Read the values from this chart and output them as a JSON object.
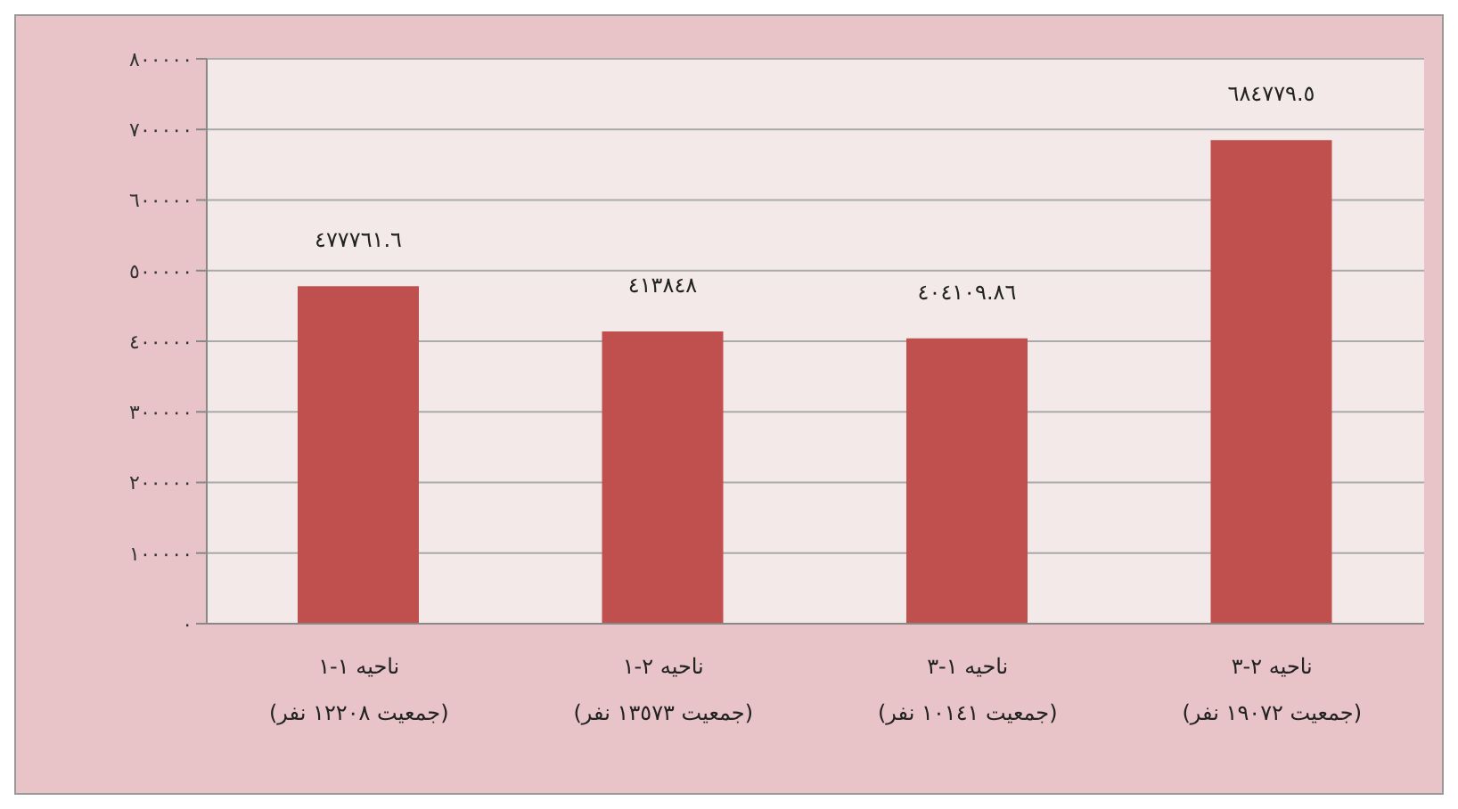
{
  "chart_data": {
    "type": "bar",
    "categories": [
      "ناحيه ١-١ (جمعيت ١٢٢٠٨ نفر)",
      "ناحيه ٢-١ (جمعيت ١٣٥٧٣ نفر)",
      "ناحيه ١-٣ (جمعيت ١٠١٤١ نفر)",
      "ناحيه ٢-٣ (جمعيت ١٩٠٧٢ نفر)"
    ],
    "values": [
      477761.6,
      413848,
      404109.86,
      684779.5
    ],
    "value_labels": [
      "٤٧٧٧٦١.٦",
      "٤١٣٨٤٨",
      "٤٠٤١٠٩.٨٦",
      "٦٨٤٧٧٩.٥"
    ],
    "color": "#c0504d",
    "ylim": [
      0,
      800000
    ],
    "yticks": [
      {
        "value": 0,
        "label": "٠"
      },
      {
        "value": 100000,
        "label": "١٠٠٠٠٠"
      },
      {
        "value": 200000,
        "label": "٢٠٠٠٠٠"
      },
      {
        "value": 300000,
        "label": "٣٠٠٠٠٠"
      },
      {
        "value": 400000,
        "label": "٤٠٠٠٠٠"
      },
      {
        "value": 500000,
        "label": "٥٠٠٠٠٠"
      },
      {
        "value": 600000,
        "label": "٦٠٠٠٠٠"
      },
      {
        "value": 700000,
        "label": "٧٠٠٠٠٠"
      },
      {
        "value": 800000,
        "label": "٨٠٠٠٠٠"
      }
    ],
    "grid": "y"
  }
}
